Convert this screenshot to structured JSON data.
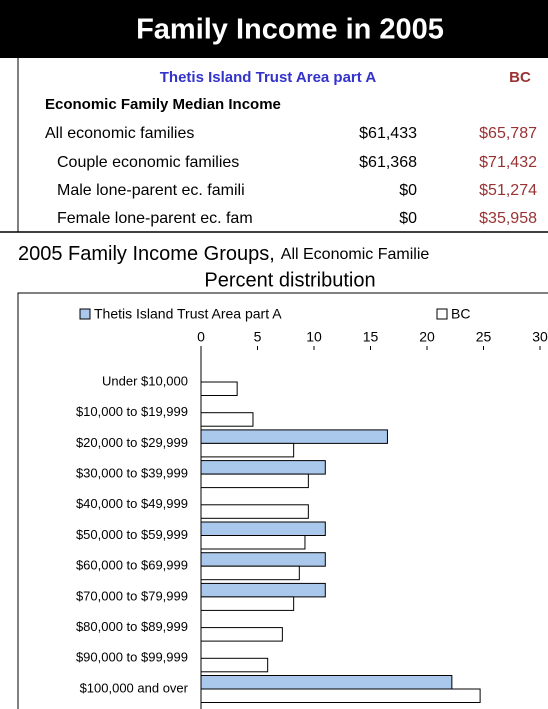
{
  "header": {
    "title": "Family Income in 2005"
  },
  "table": {
    "columns": [
      "Thetis Island Trust Area part A",
      "BC"
    ],
    "section": "Economic Family Median Income",
    "rows": [
      [
        "All economic families",
        "$61,433",
        "$65,787"
      ],
      [
        "Couple economic families",
        "$61,368",
        "$71,432"
      ],
      [
        "Male lone-parent ec. famili",
        "$0",
        "$51,274"
      ],
      [
        "Female lone-parent ec. fam",
        "$0",
        "$35,958"
      ]
    ]
  },
  "chart_data": {
    "type": "hbar",
    "title": "2005 Family Income Groups,",
    "title_note": "All Economic Familie",
    "subtitle": "Percent distribution",
    "categories": [
      "Under $10,000",
      "$10,000 to $19,999",
      "$20,000 to $29,999",
      "$30,000 to $39,999",
      "$40,000 to $49,999",
      "$50,000 to $59,999",
      "$60,000 to $69,999",
      "$70,000 to $79,999",
      "$80,000 to $89,999",
      "$90,000 to $99,999",
      "$100,000 and over"
    ],
    "series": [
      {
        "name": "Thetis Island Trust Area part A",
        "color": "#a9c8ec",
        "values": [
          0,
          0,
          16.5,
          11,
          0,
          11,
          11,
          11,
          0,
          0,
          22.2
        ]
      },
      {
        "name": "BC",
        "color": "#ffffff",
        "values": [
          3.2,
          4.6,
          8.2,
          9.5,
          9.5,
          9.2,
          8.7,
          8.2,
          7.2,
          5.9,
          24.7
        ]
      }
    ],
    "xlim": [
      0,
      30
    ],
    "xticks": [
      0,
      5,
      10,
      15,
      20,
      25,
      30
    ],
    "legend": "top"
  }
}
